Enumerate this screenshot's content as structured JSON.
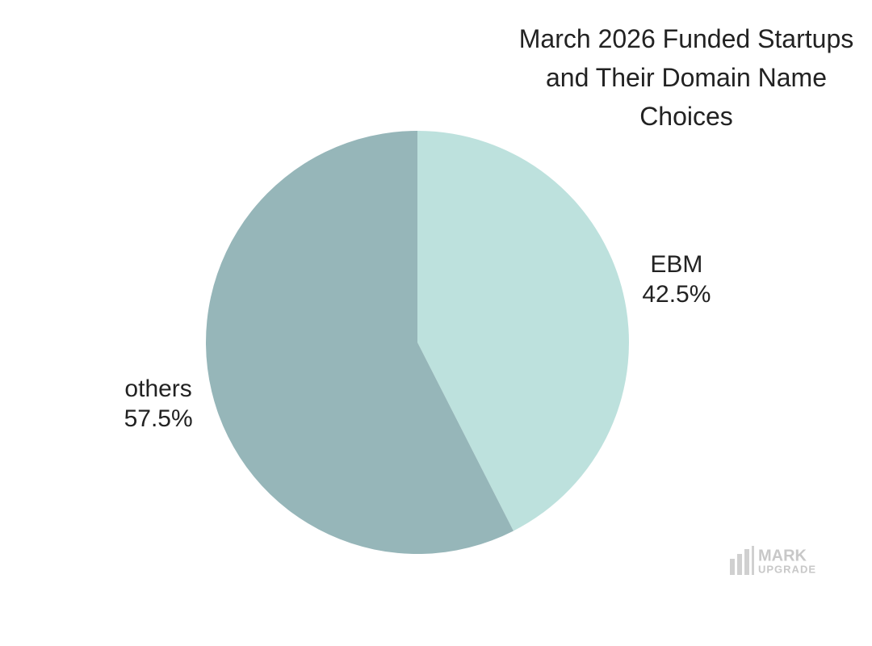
{
  "chart_data": {
    "type": "pie",
    "title": "March 2026 Funded Startups and Their Domain Name Choices",
    "categories": [
      "EBM",
      "others"
    ],
    "values": [
      42.5,
      57.5
    ],
    "value_labels": [
      "42.5%",
      "57.5%"
    ],
    "colors": [
      "#bde1dd",
      "#96b6b9"
    ]
  },
  "watermark": {
    "line1": "MARK",
    "line2": "UPGRADE"
  }
}
